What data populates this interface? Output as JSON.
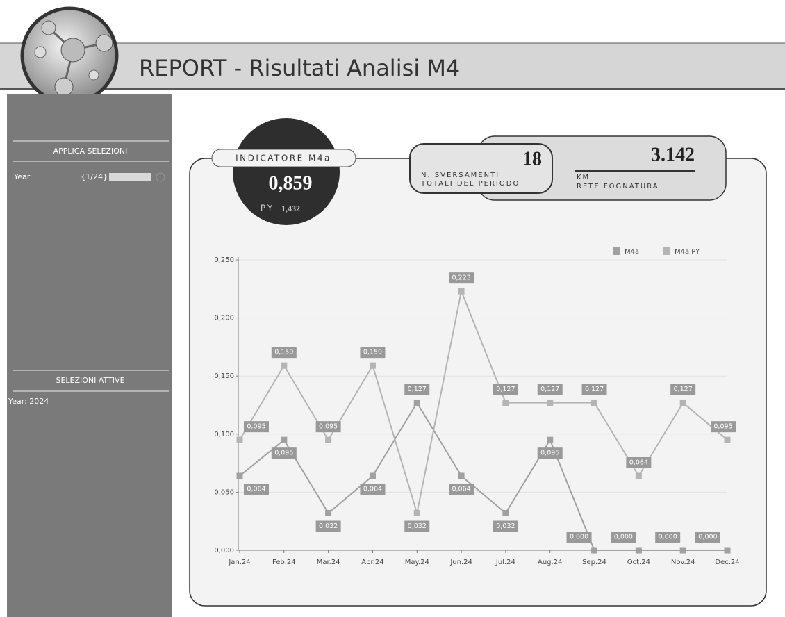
{
  "header": {
    "title": "REPORT - Risultati Analisi M4"
  },
  "sidebar": {
    "apply_title": "APPLICA SELEZIONI",
    "year_label": "Year",
    "year_value": "{1/24}",
    "active_title": "SELEZIONI ATTIVE",
    "active_value": "Year: 2024"
  },
  "kpi": {
    "indicator": {
      "label": "INDICATORE M4a",
      "value": "0,859",
      "py_label": "PY",
      "py_value": "1,432"
    },
    "spills": {
      "value": "18",
      "label_1": "N. SVERSAMENTI",
      "label_2": "TOTALI DEL PERIODO"
    },
    "network": {
      "value": "3.142",
      "unit": "KM",
      "label": "RETE FOGNATURA"
    }
  },
  "chart_data": {
    "type": "line",
    "categories": [
      "Jan.24",
      "Feb.24",
      "Mar.24",
      "Apr.24",
      "May.24",
      "Jun.24",
      "Jul.24",
      "Aug.24",
      "Sep.24",
      "Oct.24",
      "Nov.24",
      "Dec.24"
    ],
    "series": [
      {
        "name": "M4a",
        "color": "#a0a0a0",
        "values": [
          0.064,
          0.095,
          0.032,
          0.064,
          0.127,
          0.064,
          0.032,
          0.095,
          0,
          0,
          0,
          0
        ],
        "value_labels": [
          "0,064",
          "0,095",
          "0,032",
          "0,064",
          "0,127",
          "0,064",
          "0,032",
          "0,095",
          "0,000",
          "0,000",
          "0,000",
          "0,000"
        ]
      },
      {
        "name": "M4a PY",
        "color": "#b4b4b4",
        "values": [
          0.095,
          0.159,
          0.095,
          0.159,
          0.032,
          0.223,
          0.127,
          0.127,
          0.127,
          0.064,
          0.127,
          0.095
        ],
        "value_labels": [
          "0,095",
          "0,159",
          "0,095",
          "0,159",
          "0,032",
          "0,223",
          "0,127",
          "0,127",
          "0,127",
          "0,064",
          "0,127",
          "0,095"
        ]
      }
    ],
    "ylim": [
      0,
      0.25
    ],
    "yticks": [
      {
        "value": 0,
        "label": "0,000"
      },
      {
        "value": 0.05,
        "label": "0,050"
      },
      {
        "value": 0.1,
        "label": "0,100"
      },
      {
        "value": 0.15,
        "label": "0,150"
      },
      {
        "value": 0.2,
        "label": "0,200"
      },
      {
        "value": 0.25,
        "label": "0,250"
      }
    ],
    "grid": true,
    "legend": "top-right"
  }
}
